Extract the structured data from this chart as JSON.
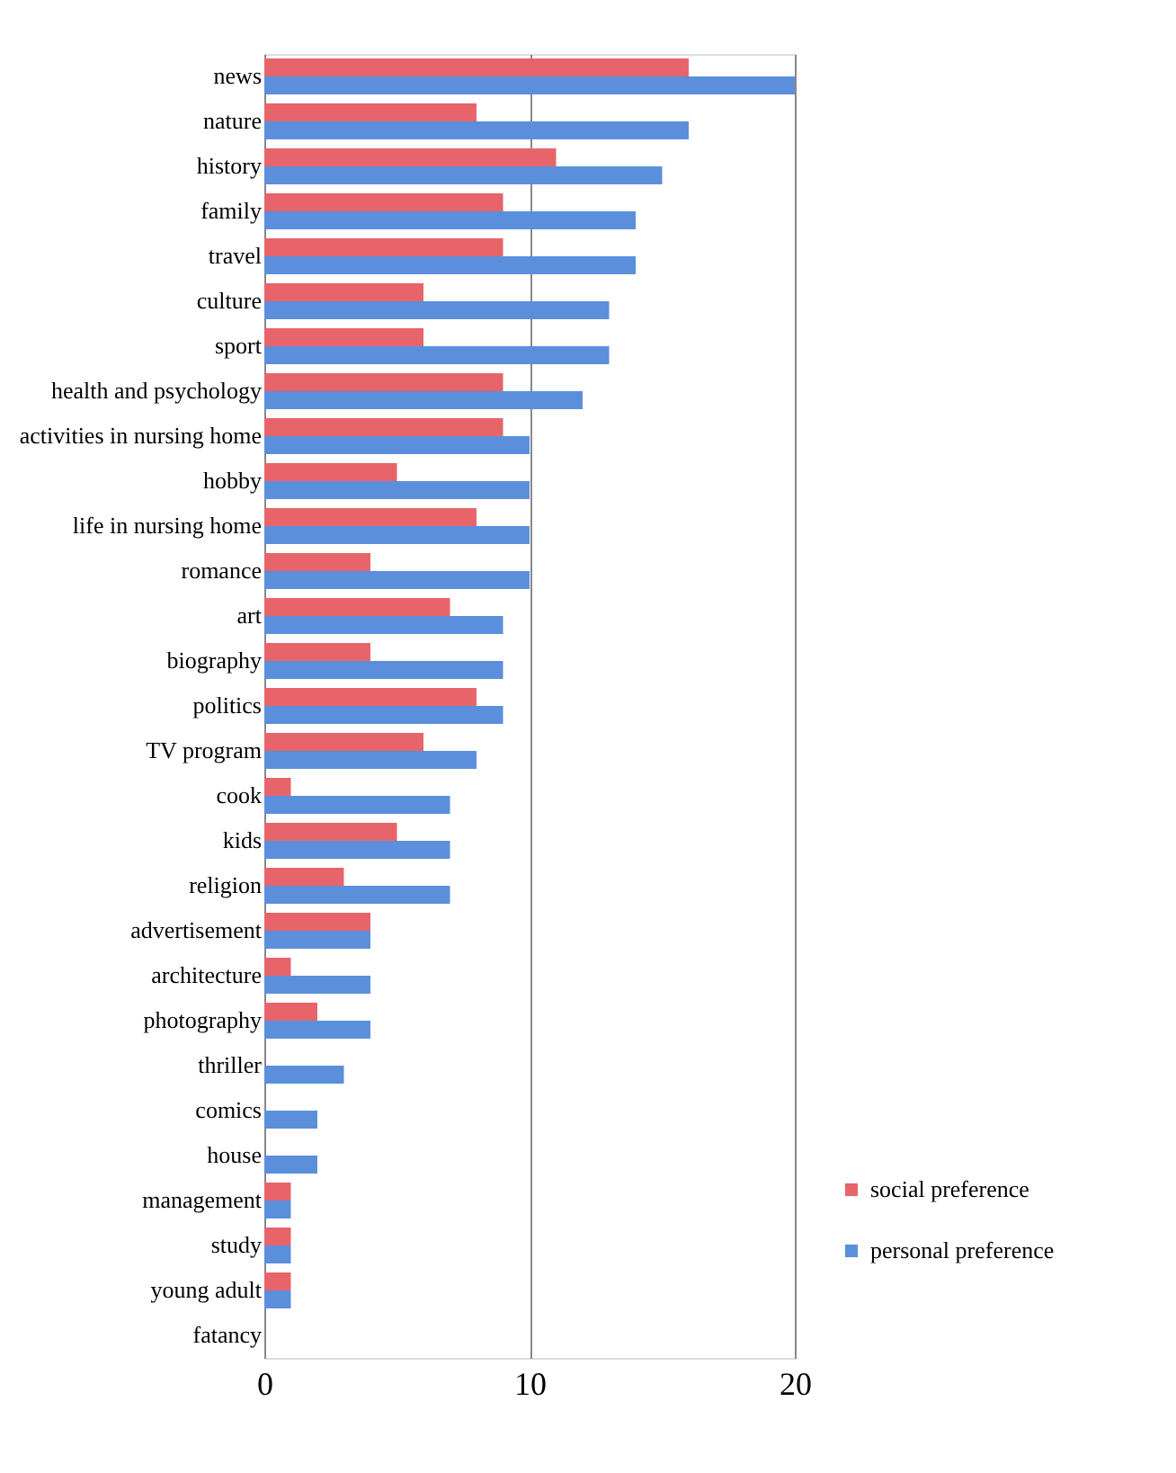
{
  "chart_data": {
    "type": "bar",
    "orientation": "horizontal",
    "categories": [
      "news",
      "nature",
      "history",
      "family",
      "travel",
      "culture",
      "sport",
      "health and psychology",
      "activities in nursing home",
      "hobby",
      "life in nursing home",
      "romance",
      "art",
      "biography",
      "politics",
      "TV program",
      "cook",
      "kids",
      "religion",
      "advertisement",
      "architecture",
      "photography",
      "thriller",
      "comics",
      "house",
      "management",
      "study",
      "young adult",
      "fatancy"
    ],
    "series": [
      {
        "name": "social preference",
        "color": "#e8646b",
        "values": [
          16,
          8,
          11,
          9,
          9,
          6,
          6,
          9,
          9,
          5,
          8,
          4,
          7,
          4,
          8,
          6,
          1,
          5,
          3,
          4,
          1,
          2,
          0,
          0,
          0,
          1,
          1,
          1,
          0
        ]
      },
      {
        "name": "personal preference",
        "color": "#5b8fdc",
        "values": [
          20,
          16,
          15,
          14,
          14,
          13,
          13,
          12,
          10,
          10,
          10,
          10,
          9,
          9,
          9,
          8,
          7,
          7,
          7,
          4,
          4,
          4,
          3,
          2,
          2,
          1,
          1,
          1,
          0
        ]
      }
    ],
    "xlim": [
      0,
      20
    ],
    "xticks": [
      0,
      10,
      20
    ],
    "grid": "x",
    "legend": "bottom right"
  }
}
